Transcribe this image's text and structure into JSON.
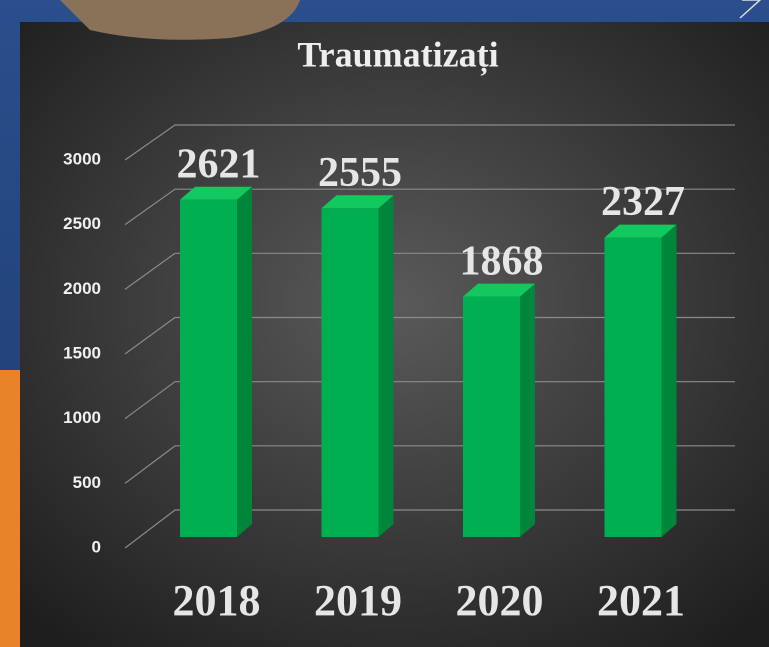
{
  "chart_data": {
    "type": "bar",
    "title": "Traumatizați",
    "categories": [
      "2018",
      "2019",
      "2020",
      "2021"
    ],
    "values": [
      2621,
      2555,
      1868,
      2327
    ],
    "color": "#00b050",
    "ylim": [
      0,
      3000
    ],
    "yticks": [
      0,
      500,
      1000,
      1500,
      2000,
      2500,
      3000
    ],
    "grid": true
  }
}
